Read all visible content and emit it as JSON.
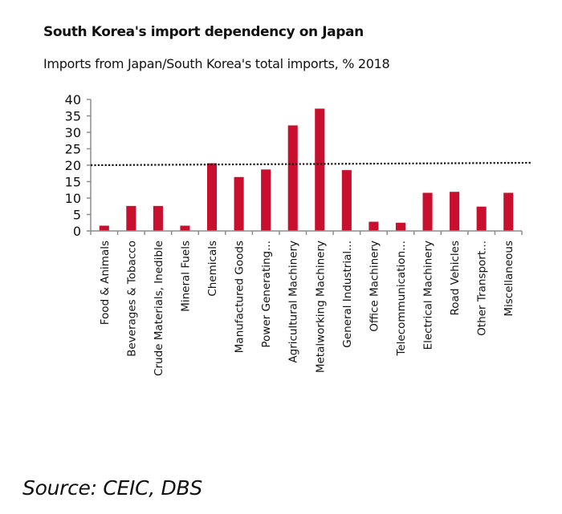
{
  "chart_data": {
    "type": "bar",
    "title": "South Korea's import dependency on Japan",
    "subtitle": "Imports from Japan/South Korea's total imports, % 2018",
    "xlabel": "",
    "ylabel": "",
    "ylim": [
      0,
      40
    ],
    "yticks": [
      0,
      5,
      10,
      15,
      20,
      25,
      30,
      35,
      40
    ],
    "grid": false,
    "bar_color": "#C8102E",
    "categories": [
      "Food & Animals",
      "Beverages & Tobacco",
      "Crude Materials, Inedible",
      "Mineral Fuels",
      "Chemicals",
      "Manufactured Goods",
      "Power Generating...",
      "Agricultural Machinery",
      "Metalworking Machinery",
      "General Industrial...",
      "Office Machinery",
      "Telecommunication...",
      "Electrical Machinery",
      "Road Vehicles",
      "Other Transport...",
      "Miscellaneous"
    ],
    "values": [
      1.6,
      7.6,
      7.6,
      1.6,
      20.6,
      16.4,
      18.7,
      32.1,
      37.2,
      18.5,
      2.8,
      2.5,
      11.6,
      11.9,
      7.4,
      11.6
    ],
    "reference_line": {
      "value": 20,
      "style": "dotted"
    },
    "source": "Source: CEIC, DBS"
  }
}
